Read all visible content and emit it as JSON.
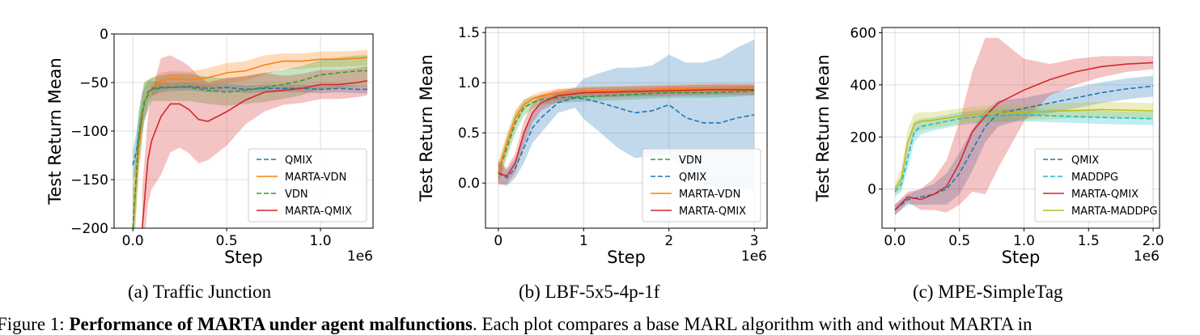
{
  "colors": {
    "orange": "#ff7f0e",
    "green": "#2ca02c",
    "blue": "#1f77b4",
    "red": "#d62728",
    "cyan": "#17becf",
    "olive": "#bcbd22"
  },
  "caption_prefix": "Figure 1: ",
  "caption_bold": "Performance of MARTA under agent malfunctions",
  "caption_rest": ". Each plot compares a base MARL algorithm with and without MARTA in",
  "chart_data": [
    {
      "type": "line",
      "caption": "(a) Traffic Junction",
      "xlabel": "Step",
      "ylabel": "Test Return Mean",
      "x_exponent": "1e6",
      "xlim": [
        -0.1,
        1.28
      ],
      "ylim": [
        -200,
        0
      ],
      "xticks": [
        0.0,
        0.5,
        1.0
      ],
      "xtick_labels": [
        "0.0",
        "0.5",
        "1.0"
      ],
      "yticks": [
        0,
        -50,
        -100,
        -150,
        -200
      ],
      "ytick_labels": [
        "0",
        "−50",
        "−100",
        "−150",
        "−200"
      ],
      "grid": true,
      "legend": {
        "position": "lower-right",
        "entries": [
          "QMIX",
          "MARTA-VDN",
          "VDN",
          "MARTA-QMIX"
        ]
      },
      "series": [
        {
          "name": "QMIX",
          "color": "blue",
          "dash": true,
          "x": [
            0.0,
            0.02,
            0.05,
            0.08,
            0.1,
            0.15,
            0.2,
            0.3,
            0.4,
            0.5,
            0.6,
            0.7,
            0.8,
            0.9,
            1.0,
            1.1,
            1.2,
            1.25
          ],
          "y": [
            -135,
            -120,
            -80,
            -60,
            -56,
            -55,
            -55,
            -54,
            -56,
            -55,
            -57,
            -56,
            -56,
            -56,
            -57,
            -56,
            -57,
            -57
          ],
          "band": [
            15,
            20,
            20,
            12,
            8,
            5,
            4,
            4,
            4,
            4,
            4,
            4,
            4,
            4,
            4,
            4,
            4,
            4
          ]
        },
        {
          "name": "MARTA-VDN",
          "color": "orange",
          "dash": false,
          "x": [
            0.0,
            0.03,
            0.06,
            0.1,
            0.15,
            0.2,
            0.3,
            0.4,
            0.5,
            0.6,
            0.7,
            0.8,
            0.9,
            1.0,
            1.1,
            1.2,
            1.25
          ],
          "y": [
            -200,
            -120,
            -70,
            -55,
            -48,
            -46,
            -47,
            -45,
            -40,
            -38,
            -32,
            -28,
            -28,
            -26,
            -26,
            -25,
            -24
          ],
          "band": [
            40,
            30,
            20,
            10,
            8,
            8,
            8,
            10,
            10,
            10,
            10,
            8,
            8,
            8,
            8,
            8,
            8
          ]
        },
        {
          "name": "VDN",
          "color": "green",
          "dash": true,
          "x": [
            0.0,
            0.03,
            0.06,
            0.1,
            0.2,
            0.3,
            0.4,
            0.5,
            0.6,
            0.7,
            0.8,
            0.9,
            1.0,
            1.1,
            1.2,
            1.25
          ],
          "y": [
            -200,
            -110,
            -70,
            -57,
            -55,
            -55,
            -58,
            -60,
            -58,
            -55,
            -52,
            -48,
            -42,
            -40,
            -38,
            -38
          ],
          "band": [
            40,
            30,
            20,
            12,
            14,
            14,
            14,
            14,
            14,
            15,
            15,
            15,
            15,
            16,
            16,
            16
          ]
        },
        {
          "name": "MARTA-QMIX",
          "color": "red",
          "dash": false,
          "x": [
            0.05,
            0.08,
            0.1,
            0.15,
            0.2,
            0.25,
            0.3,
            0.35,
            0.4,
            0.5,
            0.6,
            0.7,
            0.8,
            0.9,
            1.0,
            1.1,
            1.2,
            1.25
          ],
          "y": [
            -200,
            -130,
            -110,
            -85,
            -72,
            -72,
            -78,
            -88,
            -90,
            -80,
            -68,
            -60,
            -58,
            -56,
            -52,
            -52,
            -50,
            -48
          ],
          "band": [
            40,
            45,
            50,
            60,
            50,
            45,
            45,
            45,
            40,
            35,
            25,
            20,
            15,
            15,
            15,
            15,
            15,
            15
          ]
        }
      ]
    },
    {
      "type": "line",
      "caption": "(b) LBF-5x5-4p-1f",
      "xlabel": "Step",
      "ylabel": "Test Return Mean",
      "x_exponent": "1e6",
      "xlim": [
        -0.15,
        3.15
      ],
      "ylim": [
        -0.45,
        1.55
      ],
      "xticks": [
        0,
        1,
        2,
        3
      ],
      "xtick_labels": [
        "0",
        "1",
        "2",
        "3"
      ],
      "yticks": [
        0.0,
        0.5,
        1.0,
        1.5
      ],
      "ytick_labels": [
        "0.0",
        "0.5",
        "1.0",
        "1.5"
      ],
      "grid": true,
      "legend": {
        "position": "lower-right",
        "entries": [
          "VDN",
          "QMIX",
          "MARTA-VDN",
          "MARTA-QMIX"
        ]
      },
      "series": [
        {
          "name": "VDN",
          "color": "green",
          "dash": true,
          "x": [
            0.0,
            0.1,
            0.2,
            0.3,
            0.4,
            0.5,
            0.7,
            1.0,
            1.5,
            2.0,
            2.5,
            3.0
          ],
          "y": [
            0.1,
            0.35,
            0.6,
            0.75,
            0.8,
            0.83,
            0.85,
            0.86,
            0.88,
            0.9,
            0.9,
            0.92
          ],
          "band": [
            0.1,
            0.1,
            0.1,
            0.08,
            0.06,
            0.05,
            0.05,
            0.05,
            0.05,
            0.05,
            0.05,
            0.05
          ]
        },
        {
          "name": "QMIX",
          "color": "blue",
          "dash": true,
          "x": [
            0.0,
            0.1,
            0.2,
            0.3,
            0.4,
            0.5,
            0.7,
            0.9,
            1.0,
            1.2,
            1.4,
            1.6,
            1.8,
            2.0,
            2.2,
            2.4,
            2.6,
            2.8,
            3.0
          ],
          "y": [
            0.1,
            0.05,
            0.15,
            0.35,
            0.55,
            0.65,
            0.8,
            0.85,
            0.84,
            0.8,
            0.75,
            0.7,
            0.72,
            0.78,
            0.65,
            0.6,
            0.6,
            0.65,
            0.68
          ],
          "band": [
            0.1,
            0.08,
            0.1,
            0.15,
            0.15,
            0.15,
            0.1,
            0.1,
            0.2,
            0.3,
            0.4,
            0.45,
            0.45,
            0.5,
            0.55,
            0.6,
            0.65,
            0.7,
            0.75
          ]
        },
        {
          "name": "MARTA-VDN",
          "color": "orange",
          "dash": false,
          "x": [
            0.0,
            0.1,
            0.2,
            0.3,
            0.4,
            0.5,
            0.7,
            1.0,
            1.5,
            2.0,
            2.5,
            3.0
          ],
          "y": [
            0.1,
            0.4,
            0.65,
            0.78,
            0.84,
            0.87,
            0.9,
            0.92,
            0.93,
            0.94,
            0.95,
            0.95
          ],
          "band": [
            0.1,
            0.1,
            0.08,
            0.05,
            0.04,
            0.04,
            0.04,
            0.04,
            0.04,
            0.04,
            0.04,
            0.04
          ]
        },
        {
          "name": "MARTA-QMIX",
          "color": "red",
          "dash": false,
          "x": [
            0.0,
            0.1,
            0.2,
            0.3,
            0.4,
            0.5,
            0.7,
            1.0,
            1.5,
            2.0,
            2.5,
            3.0
          ],
          "y": [
            0.1,
            0.07,
            0.2,
            0.5,
            0.7,
            0.8,
            0.87,
            0.9,
            0.91,
            0.92,
            0.93,
            0.93
          ],
          "band": [
            0.12,
            0.08,
            0.1,
            0.12,
            0.1,
            0.08,
            0.06,
            0.05,
            0.05,
            0.05,
            0.05,
            0.05
          ]
        }
      ]
    },
    {
      "type": "line",
      "caption": "(c) MPE-SimpleTag",
      "xlabel": "Step",
      "ylabel": "Test Return Mean",
      "x_exponent": "1e6",
      "xlim": [
        -0.1,
        2.05
      ],
      "ylim": [
        -150,
        620
      ],
      "xticks": [
        0.0,
        0.5,
        1.0,
        1.5,
        2.0
      ],
      "xtick_labels": [
        "0.0",
        "0.5",
        "1.0",
        "1.5",
        "2.0"
      ],
      "yticks": [
        0,
        200,
        400,
        600
      ],
      "ytick_labels": [
        "0",
        "200",
        "400",
        "600"
      ],
      "grid": true,
      "legend": {
        "position": "lower-right",
        "entries": [
          "QMIX",
          "MADDPG",
          "MARTA-QMIX",
          "MARTA-MADDPG"
        ]
      },
      "series": [
        {
          "name": "QMIX",
          "color": "blue",
          "dash": true,
          "x": [
            0.0,
            0.1,
            0.2,
            0.3,
            0.4,
            0.5,
            0.6,
            0.7,
            0.8,
            1.0,
            1.2,
            1.4,
            1.6,
            1.8,
            2.0
          ],
          "y": [
            -80,
            -40,
            -30,
            -20,
            0,
            60,
            150,
            240,
            290,
            310,
            330,
            350,
            370,
            385,
            395
          ],
          "band": [
            20,
            20,
            30,
            40,
            60,
            80,
            80,
            60,
            50,
            40,
            40,
            40,
            40,
            40,
            40
          ]
        },
        {
          "name": "MADDPG",
          "color": "cyan",
          "dash": true,
          "x": [
            0.0,
            0.05,
            0.1,
            0.15,
            0.2,
            0.3,
            0.5,
            0.7,
            1.0,
            1.3,
            1.6,
            2.0
          ],
          "y": [
            -10,
            20,
            120,
            220,
            240,
            250,
            270,
            280,
            285,
            280,
            275,
            270
          ],
          "band": [
            20,
            30,
            40,
            40,
            30,
            25,
            25,
            25,
            25,
            25,
            25,
            25
          ]
        },
        {
          "name": "MARTA-QMIX",
          "color": "red",
          "dash": false,
          "x": [
            0.0,
            0.1,
            0.2,
            0.3,
            0.4,
            0.5,
            0.6,
            0.7,
            0.8,
            1.0,
            1.2,
            1.4,
            1.6,
            1.8,
            2.0
          ],
          "y": [
            -80,
            -30,
            -40,
            -20,
            10,
            100,
            220,
            280,
            330,
            380,
            420,
            450,
            470,
            480,
            485
          ],
          "band": [
            20,
            20,
            40,
            60,
            100,
            160,
            230,
            300,
            250,
            120,
            60,
            50,
            40,
            30,
            25
          ]
        },
        {
          "name": "MARTA-MADDPG",
          "color": "olive",
          "dash": false,
          "x": [
            0.0,
            0.05,
            0.1,
            0.15,
            0.2,
            0.3,
            0.5,
            0.7,
            1.0,
            1.3,
            1.6,
            2.0
          ],
          "y": [
            0,
            40,
            180,
            250,
            260,
            265,
            280,
            290,
            295,
            300,
            305,
            300
          ],
          "band": [
            20,
            40,
            50,
            40,
            35,
            30,
            30,
            30,
            30,
            30,
            30,
            30
          ]
        }
      ]
    }
  ]
}
